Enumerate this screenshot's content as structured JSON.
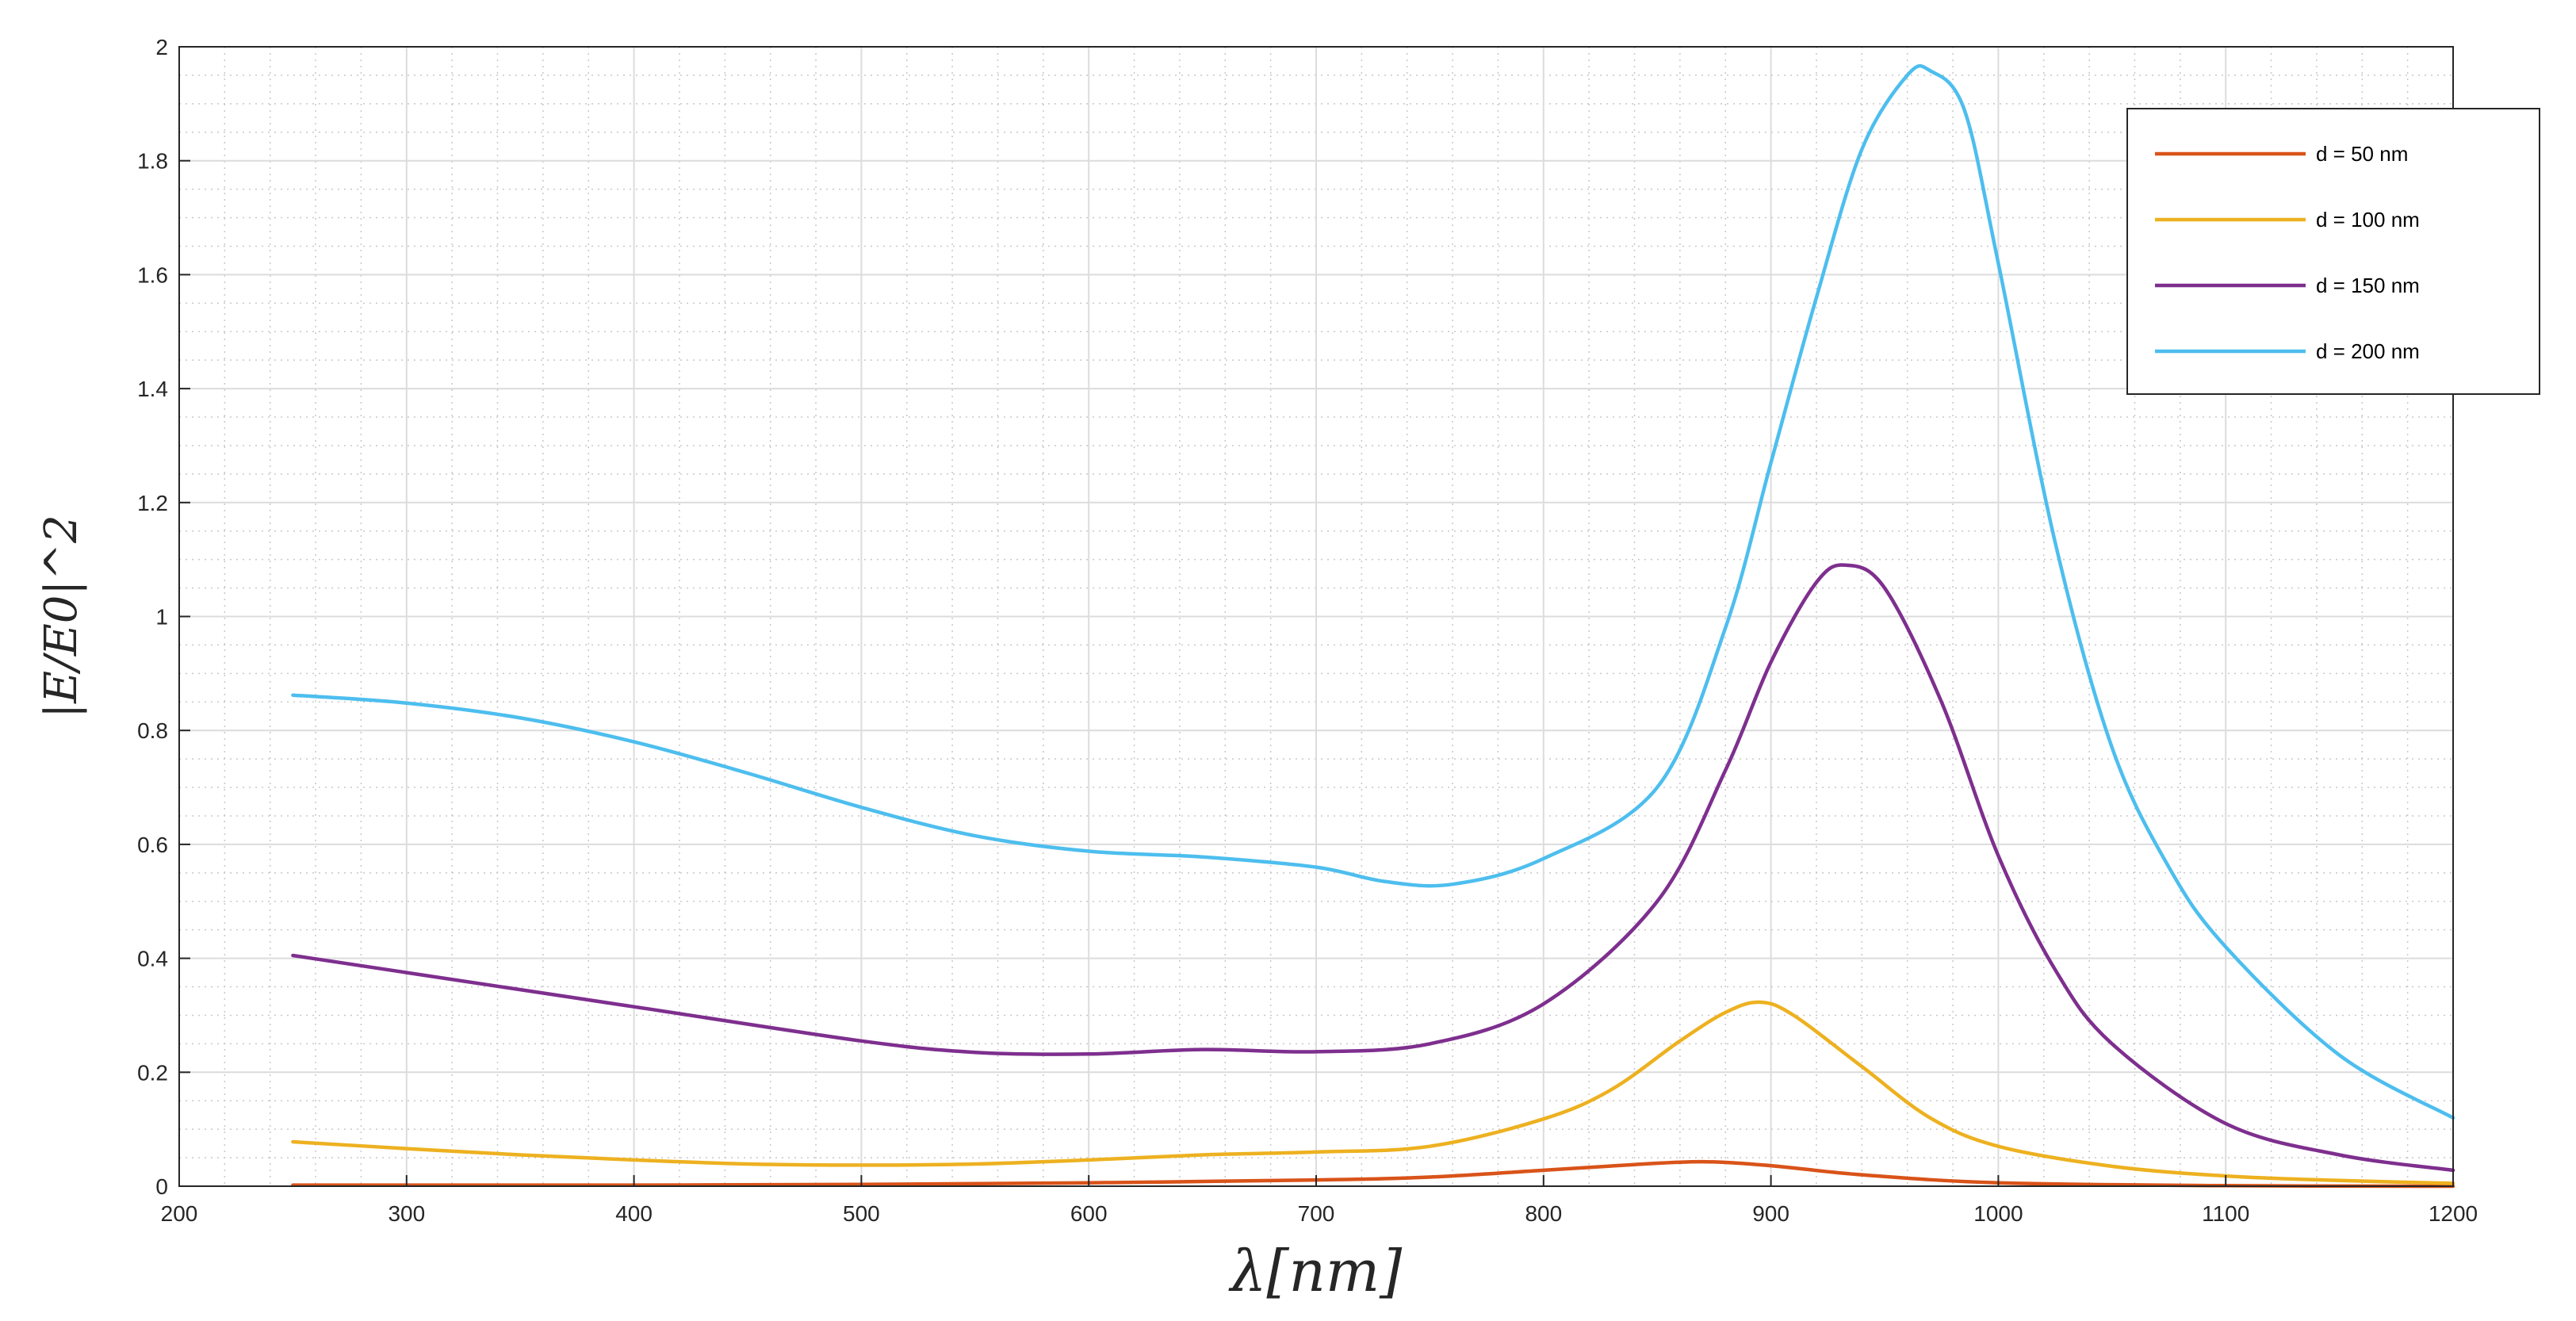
{
  "chart_data": {
    "type": "line",
    "title": "",
    "xlabel": "λ[nm]",
    "ylabel": "|E/E0|^2",
    "xlim": [
      200,
      1200
    ],
    "ylim": [
      0,
      2
    ],
    "xticks": [
      200,
      300,
      400,
      500,
      600,
      700,
      800,
      900,
      1000,
      1100,
      1200
    ],
    "yticks": [
      0,
      0.2,
      0.4,
      0.6,
      0.8,
      1,
      1.2,
      1.4,
      1.6,
      1.8,
      2
    ],
    "xtick_labels": [
      "200",
      "300",
      "400",
      "500",
      "600",
      "700",
      "800",
      "900",
      "1000",
      "1100",
      "1200"
    ],
    "ytick_labels": [
      "0",
      "0.2",
      "0.4",
      "0.6",
      "0.8",
      "1",
      "1.2",
      "1.4",
      "1.6",
      "1.8",
      "2"
    ],
    "grid": true,
    "minor_grid": true,
    "legend_position": "top-right",
    "series": [
      {
        "name": "d = 50 nm",
        "color": "#D95319",
        "x": [
          250,
          300,
          400,
          500,
          600,
          700,
          750,
          800,
          840,
          870,
          900,
          940,
          1000,
          1100,
          1200
        ],
        "y": [
          0.002,
          0.002,
          0.002,
          0.003,
          0.006,
          0.011,
          0.016,
          0.028,
          0.038,
          0.043,
          0.036,
          0.02,
          0.006,
          0.001,
          0.0
        ]
      },
      {
        "name": "d = 100 nm",
        "color": "#EDB120",
        "x": [
          250,
          300,
          350,
          400,
          450,
          500,
          550,
          600,
          650,
          700,
          750,
          800,
          830,
          860,
          880,
          895,
          910,
          940,
          970,
          1000,
          1050,
          1100,
          1150,
          1200
        ],
        "y": [
          0.078,
          0.066,
          0.055,
          0.046,
          0.039,
          0.037,
          0.039,
          0.046,
          0.055,
          0.06,
          0.07,
          0.118,
          0.17,
          0.255,
          0.305,
          0.323,
          0.3,
          0.21,
          0.12,
          0.07,
          0.035,
          0.018,
          0.01,
          0.005
        ]
      },
      {
        "name": "d = 150 nm",
        "color": "#7E2F8E",
        "x": [
          250,
          300,
          400,
          500,
          550,
          600,
          650,
          700,
          750,
          800,
          850,
          880,
          900,
          920,
          933,
          950,
          975,
          1000,
          1025,
          1050,
          1100,
          1150,
          1200
        ],
        "y": [
          0.405,
          0.375,
          0.315,
          0.255,
          0.235,
          0.232,
          0.24,
          0.236,
          0.25,
          0.32,
          0.5,
          0.73,
          0.92,
          1.06,
          1.09,
          1.05,
          0.85,
          0.58,
          0.38,
          0.25,
          0.11,
          0.055,
          0.028
        ]
      },
      {
        "name": "d = 200 nm",
        "color": "#4DBEEE",
        "x": [
          250,
          300,
          350,
          400,
          450,
          500,
          550,
          600,
          650,
          700,
          730,
          760,
          800,
          850,
          880,
          900,
          920,
          940,
          960,
          970,
          985,
          1000,
          1025,
          1050,
          1075,
          1100,
          1150,
          1200
        ],
        "y": [
          0.862,
          0.848,
          0.822,
          0.78,
          0.725,
          0.665,
          0.615,
          0.588,
          0.578,
          0.56,
          0.535,
          0.53,
          0.575,
          0.7,
          0.98,
          1.27,
          1.56,
          1.82,
          1.95,
          1.958,
          1.89,
          1.62,
          1.13,
          0.77,
          0.56,
          0.42,
          0.23,
          0.12
        ]
      }
    ]
  }
}
